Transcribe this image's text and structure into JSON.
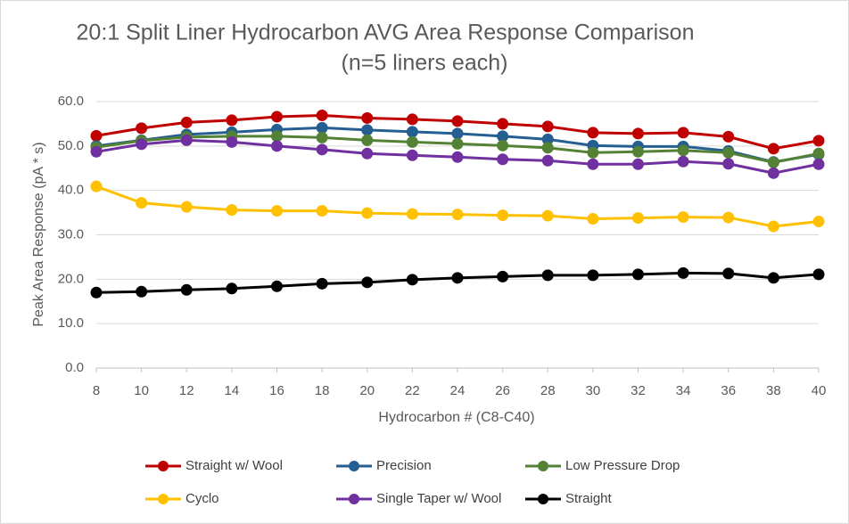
{
  "chart_data": {
    "type": "line",
    "title": "20:1 Split Liner Hydrocarbon AVG Area Response Comparison",
    "subtitle": "(n=5 liners each)",
    "x_label": "Hydrocarbon # (C8-C40)",
    "y_label": "Peak Area Response (pA * s)",
    "x": [
      8,
      10,
      12,
      14,
      16,
      18,
      20,
      22,
      24,
      26,
      28,
      30,
      32,
      34,
      36,
      38,
      40
    ],
    "xlim": [
      8,
      40
    ],
    "xticks": [
      8,
      10,
      12,
      14,
      16,
      18,
      20,
      22,
      24,
      26,
      28,
      30,
      32,
      34,
      36,
      38,
      40
    ],
    "ylim": [
      0,
      60
    ],
    "yticks": [
      {
        "value": 0,
        "label": "0.0"
      },
      {
        "value": 10,
        "label": "10.0"
      },
      {
        "value": 20,
        "label": "20.0"
      },
      {
        "value": 30,
        "label": "30.0"
      },
      {
        "value": 40,
        "label": "40.0"
      },
      {
        "value": 50,
        "label": "50.0"
      },
      {
        "value": 60,
        "label": "60.0"
      }
    ],
    "grid": true,
    "legend": "bottom",
    "series": [
      {
        "name": "Straight w/ Wool",
        "color": "#c00000",
        "values": [
          52.3,
          54.0,
          55.3,
          55.8,
          56.6,
          56.9,
          56.3,
          56.0,
          55.6,
          55.0,
          54.4,
          53.0,
          52.8,
          53.0,
          52.1,
          49.4,
          51.2
        ]
      },
      {
        "name": "Precision",
        "color": "#255e91",
        "values": [
          50.0,
          51.3,
          52.6,
          53.1,
          53.7,
          54.1,
          53.6,
          53.2,
          52.8,
          52.2,
          51.5,
          50.1,
          49.9,
          49.9,
          48.9,
          46.4,
          48.1
        ]
      },
      {
        "name": "Low Pressure Drop",
        "color": "#548235",
        "values": [
          49.7,
          51.2,
          52.0,
          52.2,
          52.2,
          51.9,
          51.3,
          50.9,
          50.5,
          50.1,
          49.6,
          48.5,
          48.7,
          49.0,
          48.5,
          46.3,
          48.3
        ]
      },
      {
        "name": "Cyclo",
        "color": "#ffc000",
        "values": [
          40.9,
          37.2,
          36.3,
          35.6,
          35.4,
          35.4,
          34.9,
          34.7,
          34.6,
          34.4,
          34.3,
          33.6,
          33.8,
          34.0,
          33.9,
          31.9,
          33.0
        ]
      },
      {
        "name": "Single Taper w/ Wool",
        "color": "#7030a0",
        "values": [
          48.7,
          50.4,
          51.3,
          50.9,
          50.0,
          49.2,
          48.3,
          47.9,
          47.5,
          47.0,
          46.7,
          45.9,
          45.9,
          46.5,
          46.0,
          43.9,
          45.9
        ]
      },
      {
        "name": "Straight",
        "color": "#000000",
        "values": [
          17.0,
          17.2,
          17.6,
          17.9,
          18.4,
          19.0,
          19.3,
          19.9,
          20.3,
          20.6,
          20.9,
          20.9,
          21.1,
          21.4,
          21.3,
          20.3,
          21.1
        ]
      }
    ]
  }
}
